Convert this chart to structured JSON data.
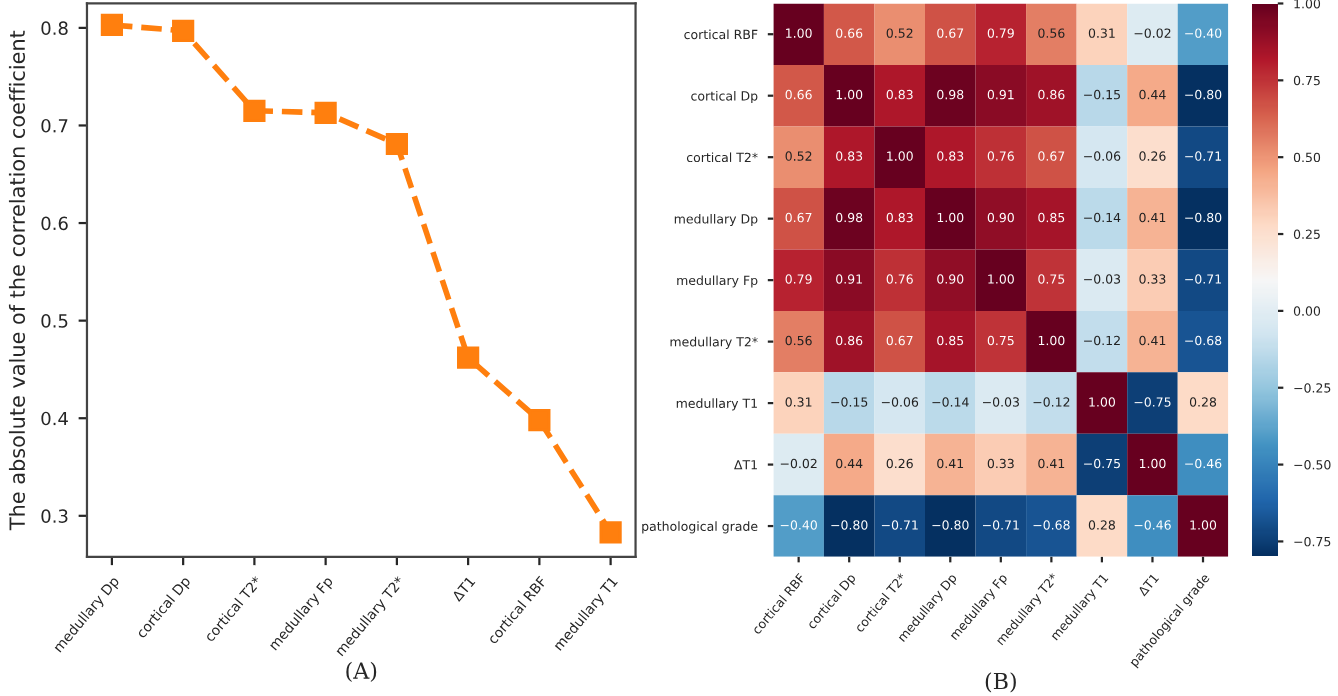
{
  "chart_data": [
    {
      "type": "line",
      "xlabel": "(A)",
      "ylabel": "The absolute value of the correlation coefficient",
      "categories": [
        "medullary Dp",
        "cortical Dp",
        "cortical T2*",
        "medullary Fp",
        "medullary T2*",
        "ΔT1",
        "cortical RBF",
        "medullary T1"
      ],
      "series": [
        {
          "color": "#ff7f0e",
          "values": [
            0.803,
            0.797,
            0.715,
            0.713,
            0.681,
            0.462,
            0.398,
            0.283
          ]
        }
      ],
      "ylim": [
        0.258,
        0.825
      ],
      "yticks": [
        0.3,
        0.4,
        0.5,
        0.6,
        0.7,
        0.8
      ],
      "marker": "square",
      "line_style": "dashed",
      "grid": false,
      "legend": false
    },
    {
      "type": "heatmap",
      "xlabel": "(B)",
      "categories": [
        "cortical RBF",
        "cortical Dp",
        "cortical T2*",
        "medullary Dp",
        "medullary Fp",
        "medullary T2*",
        "medullary T1",
        "ΔT1",
        "pathological grade"
      ],
      "y_categories": [
        "cortical RBF",
        "cortical Dp",
        "cortical T2*",
        "medullary Dp",
        "medullary Fp",
        "medullary T2*",
        "medullary T1",
        "ΔT1",
        "pathological grade"
      ],
      "cells": [
        [
          1.0,
          0.66,
          0.52,
          0.67,
          0.79,
          0.56,
          0.31,
          -0.02,
          -0.4
        ],
        [
          0.66,
          1.0,
          0.83,
          0.98,
          0.91,
          0.86,
          -0.15,
          0.44,
          -0.8
        ],
        [
          0.52,
          0.83,
          1.0,
          0.83,
          0.76,
          0.67,
          -0.06,
          0.26,
          -0.71
        ],
        [
          0.67,
          0.98,
          0.83,
          1.0,
          0.9,
          0.85,
          -0.14,
          0.41,
          -0.8
        ],
        [
          0.79,
          0.91,
          0.76,
          0.9,
          1.0,
          0.75,
          -0.03,
          0.33,
          -0.71
        ],
        [
          0.56,
          0.86,
          0.67,
          0.85,
          0.75,
          1.0,
          -0.12,
          0.41,
          -0.68
        ],
        [
          0.31,
          -0.15,
          -0.06,
          -0.14,
          -0.03,
          -0.12,
          1.0,
          -0.75,
          0.28
        ],
        [
          -0.02,
          0.44,
          0.26,
          0.41,
          0.33,
          0.41,
          -0.75,
          1.0,
          -0.46
        ],
        [
          -0.4,
          -0.8,
          -0.71,
          -0.8,
          -0.71,
          -0.68,
          0.28,
          -0.46,
          1.0
        ]
      ],
      "clim": [
        -0.8,
        1.0
      ],
      "cticks": [
        {
          "value": -0.75,
          "label": "−0.75"
        },
        {
          "value": -0.5,
          "label": "−0.50"
        },
        {
          "value": -0.25,
          "label": "−0.25"
        },
        {
          "value": 0,
          "label": "0.00"
        },
        {
          "value": 0.25,
          "label": "0.25"
        },
        {
          "value": 0.5,
          "label": "0.50"
        },
        {
          "value": 0.75,
          "label": "0.75"
        },
        {
          "value": 1.0,
          "label": "1.00"
        }
      ],
      "cell_labels": [
        [
          "1.00",
          "0.66",
          "0.52",
          "0.67",
          "0.79",
          "0.56",
          "0.31",
          "−0.02",
          "−0.40"
        ],
        [
          "0.66",
          "1.00",
          "0.83",
          "0.98",
          "0.91",
          "0.86",
          "−0.15",
          "0.44",
          "−0.80"
        ],
        [
          "0.52",
          "0.83",
          "1.00",
          "0.83",
          "0.76",
          "0.67",
          "−0.06",
          "0.26",
          "−0.71"
        ],
        [
          "0.67",
          "0.98",
          "0.83",
          "1.00",
          "0.90",
          "0.85",
          "−0.14",
          "0.41",
          "−0.80"
        ],
        [
          "0.79",
          "0.91",
          "0.76",
          "0.90",
          "1.00",
          "0.75",
          "−0.03",
          "0.33",
          "−0.71"
        ],
        [
          "0.56",
          "0.86",
          "0.67",
          "0.85",
          "0.75",
          "1.00",
          "−0.12",
          "0.41",
          "−0.68"
        ],
        [
          "0.31",
          "−0.15",
          "−0.06",
          "−0.14",
          "−0.03",
          "−0.12",
          "1.00",
          "−0.75",
          "0.28"
        ],
        [
          "−0.02",
          "0.44",
          "0.26",
          "0.41",
          "0.33",
          "0.41",
          "−0.75",
          "1.00",
          "−0.46"
        ],
        [
          "−0.40",
          "−0.80",
          "−0.71",
          "−0.80",
          "−0.71",
          "−0.68",
          "0.28",
          "−0.46",
          "1.00"
        ]
      ]
    }
  ]
}
